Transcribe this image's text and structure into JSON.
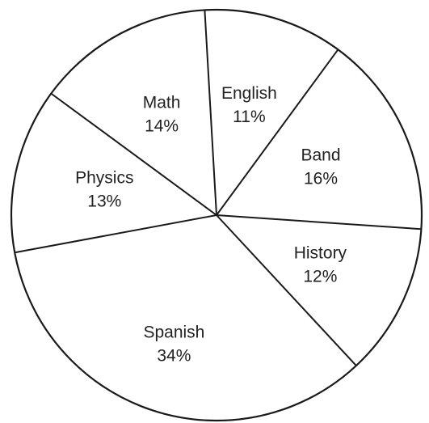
{
  "chart_data": {
    "type": "pie",
    "title": "",
    "start_angle_deg": -3.3,
    "direction": "clockwise",
    "slices": [
      {
        "label": "English",
        "percent_label": "11%",
        "value": 11
      },
      {
        "label": "Band",
        "percent_label": "16%",
        "value": 16
      },
      {
        "label": "History",
        "percent_label": "12%",
        "value": 12
      },
      {
        "label": "Spanish",
        "percent_label": "34%",
        "value": 34
      },
      {
        "label": "Physics",
        "percent_label": "13%",
        "value": 13
      },
      {
        "label": "Math",
        "percent_label": "14%",
        "value": 14
      }
    ],
    "colors": {
      "fill": "#ffffff",
      "stroke": "#1a1a1a",
      "text": "#222222"
    }
  }
}
